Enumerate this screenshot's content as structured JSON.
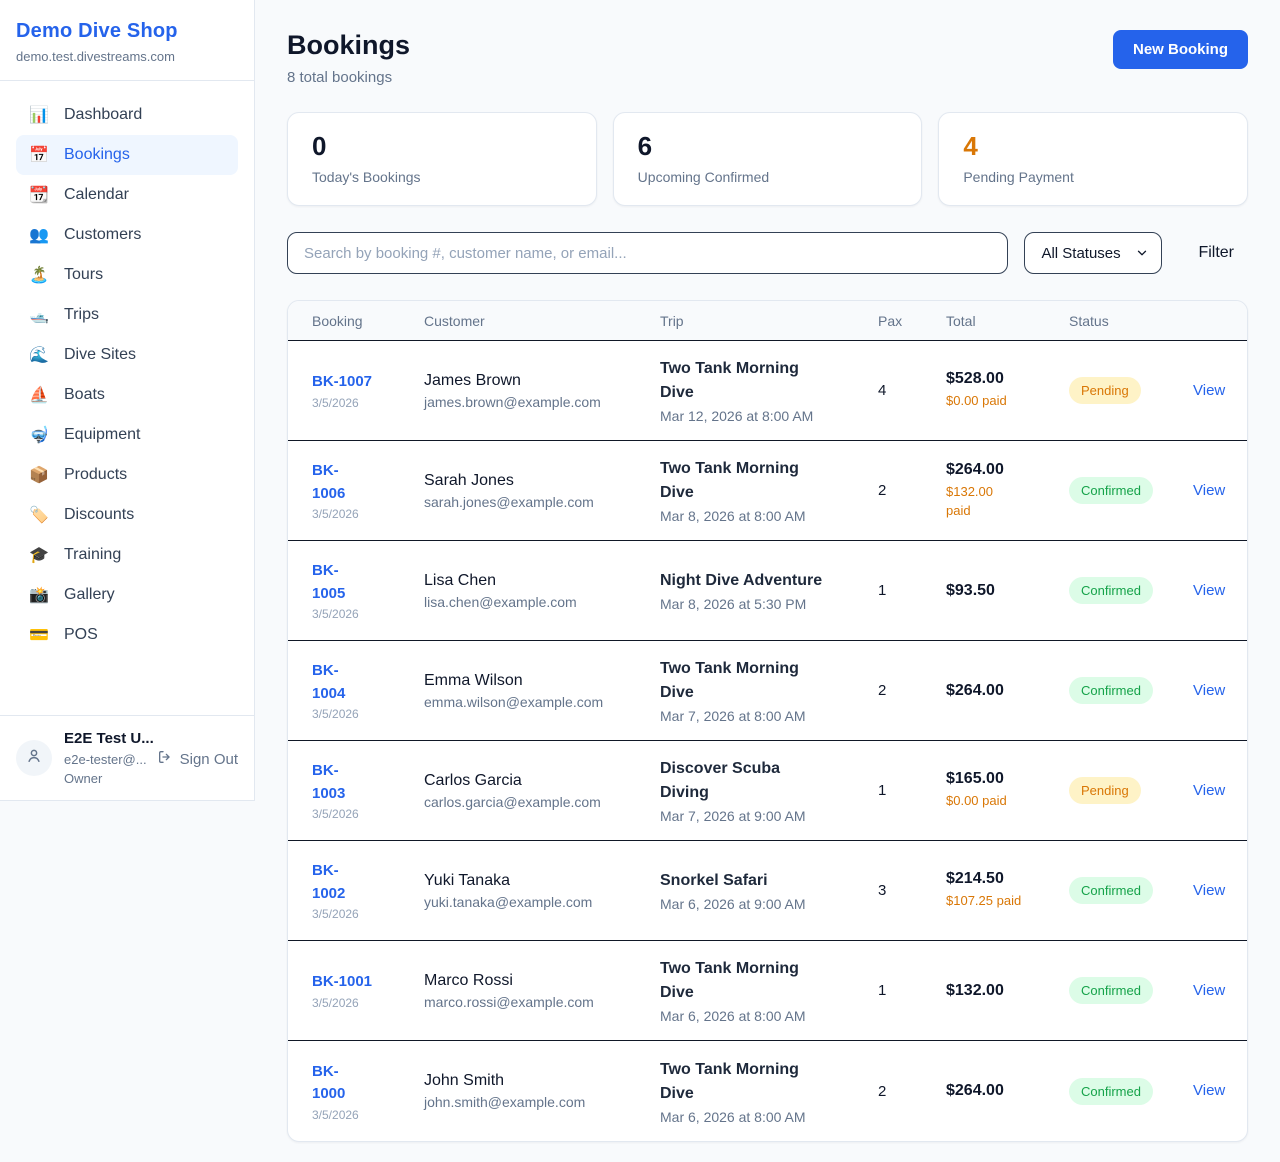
{
  "colors": {
    "accent": "#2563eb",
    "pending_text": "#d97706",
    "pending_bg": "#fef3c7",
    "confirmed_text": "#16a34a",
    "confirmed_bg": "#dcfce7",
    "paid_amount": "#d97706"
  },
  "sidebar": {
    "shop_name": "Demo Dive Shop",
    "domain": "demo.test.divestreams.com",
    "items": [
      {
        "label": "Dashboard",
        "icon": "bar-chart",
        "glyph": "📊",
        "active": false
      },
      {
        "label": "Bookings",
        "icon": "calendar",
        "glyph": "📅",
        "active": true
      },
      {
        "label": "Calendar",
        "icon": "tear-off-calendar",
        "glyph": "📆",
        "active": false
      },
      {
        "label": "Customers",
        "icon": "people",
        "glyph": "👥",
        "active": false
      },
      {
        "label": "Tours",
        "icon": "desert-island",
        "glyph": "🏝️",
        "active": false
      },
      {
        "label": "Trips",
        "icon": "motorboat",
        "glyph": "🛥️",
        "active": false
      },
      {
        "label": "Dive Sites",
        "icon": "wave",
        "glyph": "🌊",
        "active": false
      },
      {
        "label": "Boats",
        "icon": "sailboat",
        "glyph": "⛵",
        "active": false
      },
      {
        "label": "Equipment",
        "icon": "diving-mask",
        "glyph": "🤿",
        "active": false
      },
      {
        "label": "Products",
        "icon": "package",
        "glyph": "📦",
        "active": false
      },
      {
        "label": "Discounts",
        "icon": "label-tag",
        "glyph": "🏷️",
        "active": false
      },
      {
        "label": "Training",
        "icon": "graduation-cap",
        "glyph": "🎓",
        "active": false
      },
      {
        "label": "Gallery",
        "icon": "camera-flash",
        "glyph": "📸",
        "active": false
      },
      {
        "label": "POS",
        "icon": "credit-card",
        "glyph": "💳",
        "active": false
      }
    ],
    "user": {
      "name": "E2E Test U...",
      "email": "e2e-tester@...",
      "role": "Owner",
      "sign_out_label": "Sign Out"
    }
  },
  "header": {
    "title": "Bookings",
    "subtitle": "8 total bookings",
    "new_booking_label": "New Booking"
  },
  "stats": [
    {
      "value": "0",
      "label": "Today's Bookings",
      "accent": false
    },
    {
      "value": "6",
      "label": "Upcoming Confirmed",
      "accent": false
    },
    {
      "value": "4",
      "label": "Pending Payment",
      "accent": true
    }
  ],
  "filters": {
    "search_placeholder": "Search by booking #, customer name, or email...",
    "status_selected": "All Statuses",
    "filter_label": "Filter"
  },
  "table": {
    "columns": [
      "Booking",
      "Customer",
      "Trip",
      "Pax",
      "Total",
      "Status"
    ],
    "view_label": "View",
    "rows": [
      {
        "id": "BK-1007",
        "id_wrap": false,
        "date": "3/5/2026",
        "customer": "James Brown",
        "email": "james.brown@example.com",
        "trip": "Two Tank Morning Dive",
        "trip_wrap": true,
        "trip_datetime": "Mar 12, 2026 at 8:00 AM",
        "pax": "4",
        "total": "$528.00",
        "paid": "$0.00 paid",
        "paid_wrap": false,
        "status": "Pending"
      },
      {
        "id": "BK-1006",
        "id_wrap": true,
        "date": "3/5/2026",
        "customer": "Sarah Jones",
        "email": "sarah.jones@example.com",
        "trip": "Two Tank Morning Dive",
        "trip_wrap": true,
        "trip_datetime": "Mar 8, 2026 at 8:00 AM",
        "pax": "2",
        "total": "$264.00",
        "paid": "$132.00 paid",
        "paid_wrap": true,
        "status": "Confirmed"
      },
      {
        "id": "BK-1005",
        "id_wrap": true,
        "date": "3/5/2026",
        "customer": "Lisa Chen",
        "email": "lisa.chen@example.com",
        "trip": "Night Dive Adventure",
        "trip_wrap": false,
        "trip_datetime": "Mar 8, 2026 at 5:30 PM",
        "pax": "1",
        "total": "$93.50",
        "paid": null,
        "paid_wrap": false,
        "status": "Confirmed"
      },
      {
        "id": "BK-1004",
        "id_wrap": true,
        "date": "3/5/2026",
        "customer": "Emma Wilson",
        "email": "emma.wilson@example.com",
        "trip": "Two Tank Morning Dive",
        "trip_wrap": true,
        "trip_datetime": "Mar 7, 2026 at 8:00 AM",
        "pax": "2",
        "total": "$264.00",
        "paid": null,
        "paid_wrap": false,
        "status": "Confirmed"
      },
      {
        "id": "BK-1003",
        "id_wrap": true,
        "date": "3/5/2026",
        "customer": "Carlos Garcia",
        "email": "carlos.garcia@example.com",
        "trip": "Discover Scuba Diving",
        "trip_wrap": true,
        "trip_datetime": "Mar 7, 2026 at 9:00 AM",
        "pax": "1",
        "total": "$165.00",
        "paid": "$0.00 paid",
        "paid_wrap": false,
        "status": "Pending"
      },
      {
        "id": "BK-1002",
        "id_wrap": true,
        "date": "3/5/2026",
        "customer": "Yuki Tanaka",
        "email": "yuki.tanaka@example.com",
        "trip": "Snorkel Safari",
        "trip_wrap": false,
        "trip_datetime": "Mar 6, 2026 at 9:00 AM",
        "pax": "3",
        "total": "$214.50",
        "paid": "$107.25 paid",
        "paid_wrap": false,
        "status": "Confirmed"
      },
      {
        "id": "BK-1001",
        "id_wrap": false,
        "date": "3/5/2026",
        "customer": "Marco Rossi",
        "email": "marco.rossi@example.com",
        "trip": "Two Tank Morning Dive",
        "trip_wrap": true,
        "trip_datetime": "Mar 6, 2026 at 8:00 AM",
        "pax": "1",
        "total": "$132.00",
        "paid": null,
        "paid_wrap": false,
        "status": "Confirmed"
      },
      {
        "id": "BK-1000",
        "id_wrap": true,
        "date": "3/5/2026",
        "customer": "John Smith",
        "email": "john.smith@example.com",
        "trip": "Two Tank Morning Dive",
        "trip_wrap": true,
        "trip_datetime": "Mar 6, 2026 at 8:00 AM",
        "pax": "2",
        "total": "$264.00",
        "paid": null,
        "paid_wrap": false,
        "status": "Confirmed"
      }
    ]
  }
}
